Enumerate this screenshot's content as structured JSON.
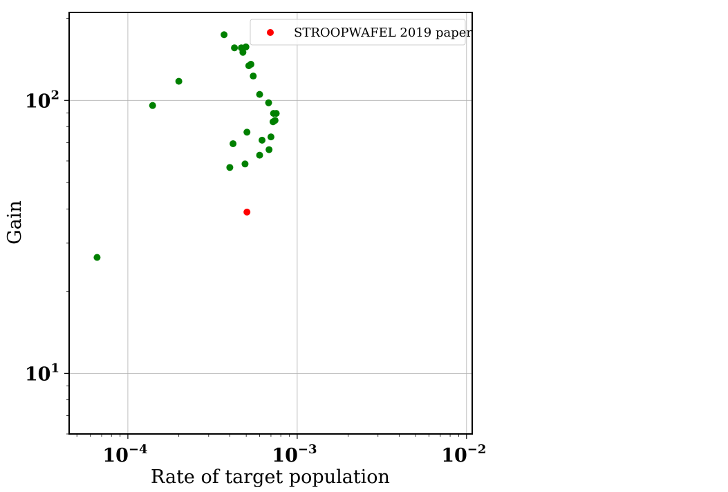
{
  "chart_data": {
    "type": "scatter",
    "xlabel": "Rate of target population",
    "ylabel": "Gain",
    "xscale": "log",
    "yscale": "log",
    "xlim": [
      4.5e-05,
      0.0108
    ],
    "ylim": [
      6.0,
      210
    ],
    "grid": true,
    "legend_position": "top-right",
    "x_major_ticks": [
      {
        "value": 0.0001,
        "base": "10",
        "exp": "−4"
      },
      {
        "value": 0.001,
        "base": "10",
        "exp": "−3"
      },
      {
        "value": 0.01,
        "base": "10",
        "exp": "−2"
      }
    ],
    "y_major_ticks": [
      {
        "value": 10,
        "base": "10",
        "exp": "1"
      },
      {
        "value": 100,
        "base": "10",
        "exp": "2"
      }
    ],
    "series": [
      {
        "color": "#008000",
        "points": [
          [
            6.58e-05,
            26.6
          ],
          [
            0.00014,
            95.8
          ],
          [
            0.0002,
            117.5
          ],
          [
            0.00037,
            174.0
          ],
          [
            0.000426,
            155.8
          ],
          [
            0.000468,
            155.8
          ],
          [
            0.000478,
            150.0
          ],
          [
            0.000498,
            157.0
          ],
          [
            0.000518,
            134.0
          ],
          [
            0.000533,
            135.6
          ],
          [
            0.00055,
            122.8
          ],
          [
            0.0006,
            105.2
          ],
          [
            0.000678,
            98.0
          ],
          [
            0.000725,
            89.6
          ],
          [
            0.000752,
            89.6
          ],
          [
            0.00072,
            83.5
          ],
          [
            0.00074,
            84.5
          ],
          [
            0.000505,
            76.5
          ],
          [
            0.0007,
            73.5
          ],
          [
            0.00062,
            71.5
          ],
          [
            0.000418,
            69.4
          ],
          [
            0.000682,
            66.0
          ],
          [
            0.0006,
            63.0
          ],
          [
            0.000492,
            58.5
          ],
          [
            0.0004,
            56.8
          ]
        ]
      },
      {
        "name": "STROOPWAFEL 2019 paper",
        "color": "#ff0000",
        "points": [
          [
            0.000505,
            39.0
          ]
        ]
      }
    ]
  }
}
